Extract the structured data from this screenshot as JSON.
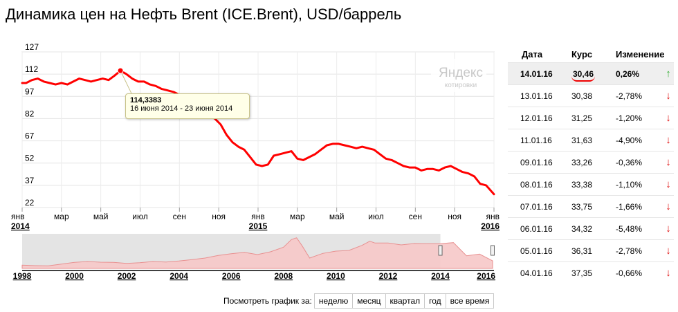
{
  "title": "Динамика цен на Нефть Brent (ICE.Brent), USD/баррель",
  "logo": {
    "line1": "Яндекс",
    "line2": "котировки"
  },
  "tooltip": {
    "value": "114,3383",
    "period": "16 июня 2014 - 23 июня 2014"
  },
  "colors": {
    "line": "#ff0000",
    "accent_up": "#35b035",
    "accent_down": "#e01010"
  },
  "chart_data": [
    {
      "type": "line",
      "title": "Динамика цен на Нефть Brent (ICE.Brent), USD/баррель",
      "ylim": [
        22,
        127
      ],
      "xlim": [
        0,
        24
      ],
      "yticks": [
        127,
        112,
        97,
        82,
        67,
        52,
        37,
        22
      ],
      "xticks": [
        {
          "pos": 0,
          "label": "янв",
          "year": "2014"
        },
        {
          "pos": 2,
          "label": "мар"
        },
        {
          "pos": 4,
          "label": "май"
        },
        {
          "pos": 6,
          "label": "июл"
        },
        {
          "pos": 8,
          "label": "сен"
        },
        {
          "pos": 10,
          "label": "ноя"
        },
        {
          "pos": 12,
          "label": "янв",
          "year": "2015"
        },
        {
          "pos": 14,
          "label": "мар"
        },
        {
          "pos": 16,
          "label": "май"
        },
        {
          "pos": 18,
          "label": "июл"
        },
        {
          "pos": 20,
          "label": "сен"
        },
        {
          "pos": 22,
          "label": "ноя"
        },
        {
          "pos": 24,
          "label": "янв",
          "year": "2016"
        }
      ],
      "highlight": {
        "x": 5.0,
        "y": 114.34
      },
      "series": [
        {
          "name": "ICE.Brent",
          "x": [
            0,
            0.2,
            0.5,
            0.8,
            1.1,
            1.4,
            1.7,
            2.0,
            2.3,
            2.6,
            2.9,
            3.2,
            3.5,
            3.8,
            4.1,
            4.4,
            4.7,
            5.0,
            5.3,
            5.6,
            5.9,
            6.2,
            6.5,
            6.8,
            7.1,
            7.4,
            7.7,
            8.0,
            8.3,
            8.6,
            8.9,
            9.2,
            9.5,
            9.8,
            10.1,
            10.4,
            10.7,
            11.0,
            11.3,
            11.6,
            11.9,
            12.2,
            12.5,
            12.8,
            13.1,
            13.4,
            13.7,
            14.0,
            14.3,
            14.6,
            14.9,
            15.2,
            15.5,
            15.8,
            16.1,
            16.4,
            16.7,
            17.0,
            17.3,
            17.6,
            17.9,
            18.2,
            18.5,
            18.8,
            19.1,
            19.4,
            19.7,
            20.0,
            20.3,
            20.6,
            20.9,
            21.2,
            21.5,
            21.8,
            22.1,
            22.4,
            22.7,
            23.0,
            23.3,
            23.6,
            24.0
          ],
          "values": [
            106,
            106,
            108,
            109,
            107,
            106,
            105,
            106,
            105,
            107,
            109,
            108,
            107,
            108,
            109,
            108,
            111,
            114.3,
            112,
            109,
            107,
            107,
            105,
            104,
            102,
            101,
            100,
            98,
            97,
            94,
            92,
            88,
            84,
            82,
            78,
            71,
            66,
            63,
            61,
            56,
            51,
            50,
            51,
            57,
            58,
            59,
            60,
            55,
            54,
            56,
            58,
            61,
            64,
            65,
            65,
            64,
            63,
            62,
            63,
            62,
            61,
            58,
            55,
            54,
            52,
            50,
            49,
            49,
            47,
            48,
            48,
            47,
            49,
            50,
            48,
            46,
            45,
            43,
            38,
            37,
            31
          ]
        }
      ]
    },
    {
      "type": "area",
      "title": "",
      "xlim": [
        1998,
        2016.05
      ],
      "ylim": [
        0,
        150
      ],
      "xticks": [
        1998,
        2000,
        2002,
        2004,
        2006,
        2008,
        2010,
        2012,
        2014,
        2016
      ],
      "selection": [
        2014.0,
        2016.05
      ],
      "series": [
        {
          "name": "ICE.Brent (1998-2016)",
          "x": [
            1998,
            1998.5,
            1999,
            1999.5,
            2000,
            2000.5,
            2001,
            2001.5,
            2002,
            2002.5,
            2003,
            2003.5,
            2004,
            2004.5,
            2005,
            2005.5,
            2006,
            2006.5,
            2007,
            2007.5,
            2008,
            2008.3,
            2008.5,
            2008.7,
            2009,
            2009.5,
            2010,
            2010.5,
            2011,
            2011.3,
            2011.5,
            2012,
            2012.5,
            2013,
            2013.5,
            2014,
            2014.5,
            2015,
            2015.5,
            2016
          ],
          "values": [
            14,
            12,
            11,
            19,
            26,
            30,
            27,
            26,
            22,
            25,
            30,
            28,
            32,
            38,
            45,
            56,
            64,
            70,
            60,
            72,
            92,
            125,
            133,
            100,
            45,
            65,
            75,
            78,
            100,
            118,
            110,
            110,
            102,
            108,
            107,
            107,
            112,
            55,
            62,
            33
          ]
        }
      ]
    }
  ],
  "table": {
    "headers": [
      "Дата",
      "Курс",
      "Изменение"
    ],
    "rows": [
      {
        "date": "14.01.16",
        "rate": "30,46",
        "change": "0,26%",
        "dir": "up",
        "arrow": "↑"
      },
      {
        "date": "13.01.16",
        "rate": "30,38",
        "change": "-2,78%",
        "dir": "down",
        "arrow": "↓"
      },
      {
        "date": "12.01.16",
        "rate": "31,25",
        "change": "-1,20%",
        "dir": "down",
        "arrow": "↓"
      },
      {
        "date": "11.01.16",
        "rate": "31,63",
        "change": "-4,90%",
        "dir": "down",
        "arrow": "↓"
      },
      {
        "date": "09.01.16",
        "rate": "33,26",
        "change": "-0,36%",
        "dir": "down",
        "arrow": "↓"
      },
      {
        "date": "08.01.16",
        "rate": "33,38",
        "change": "-1,10%",
        "dir": "down",
        "arrow": "↓"
      },
      {
        "date": "07.01.16",
        "rate": "33,75",
        "change": "-1,66%",
        "dir": "down",
        "arrow": "↓"
      },
      {
        "date": "06.01.16",
        "rate": "34,32",
        "change": "-5,48%",
        "dir": "down",
        "arrow": "↓"
      },
      {
        "date": "05.01.16",
        "rate": "36,31",
        "change": "-2,78%",
        "dir": "down",
        "arrow": "↓"
      },
      {
        "date": "04.01.16",
        "rate": "37,35",
        "change": "-0,66%",
        "dir": "down",
        "arrow": "↓"
      }
    ]
  },
  "periods": {
    "label": "Посмотреть график за:",
    "buttons": [
      "неделю",
      "месяц",
      "квартал",
      "год",
      "все время"
    ]
  }
}
